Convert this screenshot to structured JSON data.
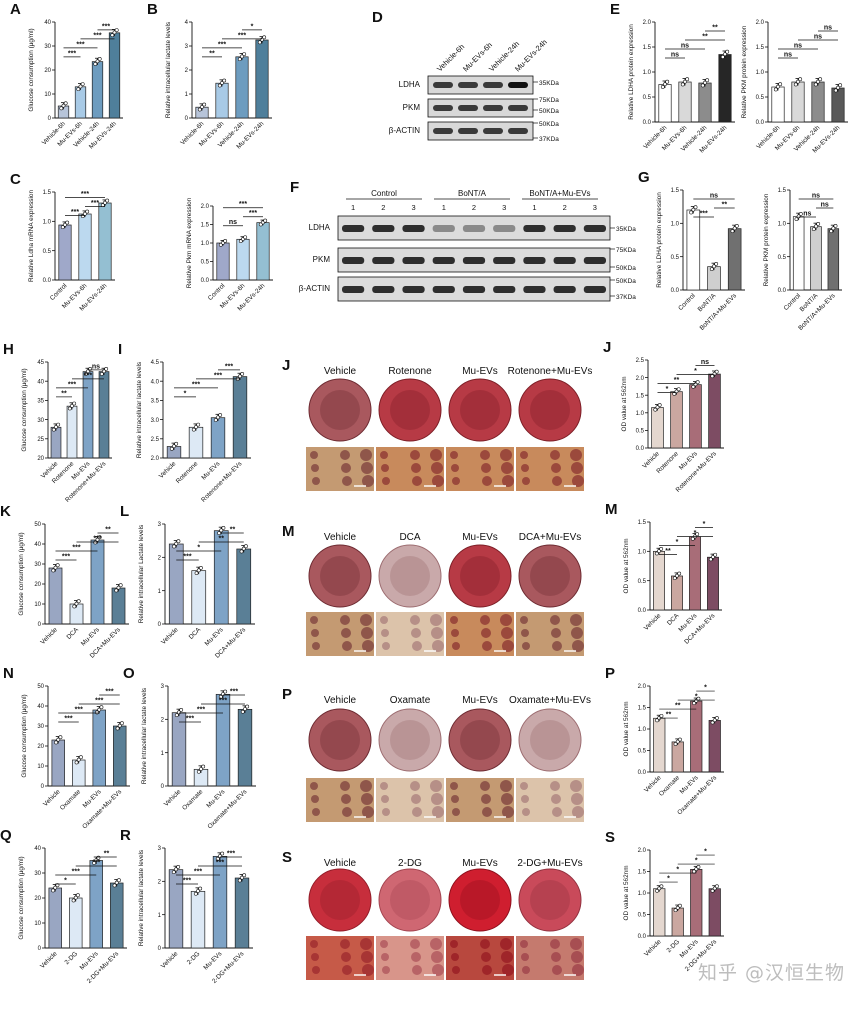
{
  "panels": {
    "A": {
      "label": "A",
      "ylabel": "Glucose consumption (μg/ml)",
      "ticks": [
        "0",
        "10",
        "20",
        "30",
        "40"
      ],
      "cats": [
        "Vehicle-6h",
        "Mu-EVs-6h",
        "Vehicle-24h",
        "Mu-EVs-24h"
      ],
      "sig": [
        "***",
        "***",
        "***",
        "***"
      ]
    },
    "B": {
      "label": "B",
      "ylabel": "Relative intracellular lactate levels",
      "ticks": [
        "0",
        "1",
        "2",
        "3",
        "4"
      ],
      "cats": [
        "Vehicle-6h",
        "Mu-EVs-6h",
        "Vehicle-24h",
        "Mu-EVs-24h"
      ],
      "sig": [
        "**",
        "***",
        "***",
        "*"
      ]
    },
    "C1": {
      "label": "C",
      "ylabel": "Relative Ldha mRNA expression",
      "ticks": [
        "0.0",
        "0.5",
        "1.0",
        "1.5"
      ],
      "cats": [
        "Control",
        "Mu-EVs-6h",
        "Mu-EVs-24h"
      ],
      "sig": [
        "***",
        "***",
        "***"
      ]
    },
    "C2": {
      "ylabel": "Relative Pkm mRNA expression",
      "ticks": [
        "0.0",
        "0.5",
        "1.0",
        "1.5",
        "2.0"
      ],
      "cats": [
        "Control",
        "Mu-EVs-6h",
        "Mu-EVs-24h"
      ],
      "sig": [
        "ns",
        "***",
        "***"
      ]
    },
    "D": {
      "label": "D",
      "lanes": [
        "Vehicle-6h",
        "Mu-EVs-6h",
        "Vehicle-24h",
        "Mu-EVs-24h"
      ],
      "rows": [
        "LDHA",
        "PKM",
        "β-ACTIN"
      ],
      "kda": [
        "35KDa",
        "75KDa",
        "50KDa",
        "50KDa",
        "37KDa"
      ]
    },
    "E1": {
      "label": "E",
      "ylabel": "Relative LDHA protein expression",
      "ticks": [
        "0.0",
        "0.5",
        "1.0",
        "1.5",
        "2.0"
      ],
      "cats": [
        "Vehicle-6h",
        "Mu-EVs-6h",
        "Vehicle-24h",
        "Mu-EVs-24h"
      ],
      "sig": [
        "ns",
        "ns",
        "**",
        "**"
      ]
    },
    "E2": {
      "ylabel": "Relative PKM protein expression",
      "ticks": [
        "0.0",
        "0.5",
        "1.0",
        "1.5",
        "2.0"
      ],
      "cats": [
        "Vehicle-6h",
        "Mu-EVs-6h",
        "Vehicle-24h",
        "Mu-EVs-24h"
      ],
      "sig": [
        "ns",
        "ns",
        "ns",
        "ns"
      ]
    },
    "F": {
      "label": "F",
      "groups": [
        "Control",
        "BoNT/A",
        "BoNT/A+Mu-EVs"
      ],
      "lanes": [
        "1",
        "2",
        "3",
        "1",
        "2",
        "3",
        "1",
        "2",
        "3"
      ],
      "rows": [
        "LDHA",
        "PKM",
        "β-ACTIN"
      ],
      "kda": [
        "35KDa",
        "75KDa",
        "50KDa",
        "50KDa",
        "37KDa"
      ]
    },
    "G1": {
      "label": "G",
      "ylabel": "Relative LDHA protein expression",
      "ticks": [
        "0.0",
        "0.5",
        "1.0",
        "1.5"
      ],
      "cats": [
        "Control",
        "BoNT/A",
        "BoNT/A+Mu-EVs"
      ],
      "sig": [
        "***",
        "**",
        "ns"
      ]
    },
    "G2": {
      "ylabel": "Relative PKM protein expression",
      "ticks": [
        "0.0",
        "0.5",
        "1.0",
        "1.5"
      ],
      "cats": [
        "Control",
        "BoNT/A",
        "BoNT/A+Mu-EVs"
      ],
      "sig": [
        "ns",
        "ns",
        "ns"
      ]
    },
    "H": {
      "label": "H",
      "ylabel": "Glucose consumption (μg/ml)",
      "ticks": [
        "20",
        "25",
        "30",
        "35",
        "40",
        "45"
      ],
      "cats": [
        "Vehicle",
        "Rotenone",
        "Mu-EVs",
        "Rotenone+Mu-EVs"
      ],
      "sig": [
        "**",
        "***",
        "***",
        "ns"
      ]
    },
    "I": {
      "label": "I",
      "ylabel": "Relative intracellular lactate levels",
      "ticks": [
        "2.0",
        "2.5",
        "3.0",
        "3.5",
        "4.0",
        "4.5"
      ],
      "cats": [
        "Vehicle",
        "Rotenone",
        "Mu-EVs",
        "Rotenone+Mu-EVs"
      ],
      "sig": [
        "*",
        "***",
        "***",
        "***"
      ]
    },
    "J": {
      "label": "J",
      "titles": [
        "Vehicle",
        "Rotenone",
        "Mu-EVs",
        "Rotenone+Mu-EVs"
      ],
      "ylabel": "OD value at 562nm",
      "ticks": [
        "0.0",
        "0.5",
        "1.0",
        "1.5",
        "2.0",
        "2.5"
      ],
      "cats": [
        "Vehicle",
        "Rotenone",
        "Mu-EVs",
        "Rotenone+Mu-EVs"
      ],
      "sig": [
        "*",
        "**",
        "*",
        "ns"
      ]
    },
    "K": {
      "label": "K",
      "ylabel": "Glucose consumption (μg/ml)",
      "ticks": [
        "0",
        "10",
        "20",
        "30",
        "40",
        "50"
      ],
      "cats": [
        "Vehicle",
        "DCA",
        "Mu-EVs",
        "DCA+Mu-EVs"
      ],
      "sig": [
        "***",
        "***",
        "***",
        "**"
      ]
    },
    "L": {
      "label": "L",
      "ylabel": "Relative intracellular Lactate levels",
      "ticks": [
        "0",
        "1",
        "2",
        "3"
      ],
      "cats": [
        "Vehicle",
        "DCA",
        "Mu-EVs",
        "DCA+Mu-EVs"
      ],
      "sig": [
        "***",
        "*",
        "**",
        "**"
      ]
    },
    "M": {
      "label": "M",
      "titles": [
        "Vehicle",
        "DCA",
        "Mu-EVs",
        "DCA+Mu-EVs"
      ],
      "ylabel": "OD value at 562nm",
      "ticks": [
        "0.0",
        "0.5",
        "1.0",
        "1.5"
      ],
      "cats": [
        "Vehicle",
        "DCA",
        "Mu-EVs",
        "DCA+Mu-EVs"
      ],
      "sig": [
        "**",
        "*",
        "*",
        "*"
      ]
    },
    "N": {
      "label": "N",
      "ylabel": "Glucose consumption (μg/ml)",
      "ticks": [
        "0",
        "10",
        "20",
        "30",
        "40",
        "50"
      ],
      "cats": [
        "Vehicle",
        "Oxamate",
        "Mu-EVs",
        "Oxamate+Mu-EVs"
      ],
      "sig": [
        "***",
        "***",
        "***",
        "***"
      ]
    },
    "O": {
      "label": "O",
      "ylabel": "Relative intracellular lactate levels",
      "ticks": [
        "0",
        "1",
        "2",
        "3"
      ],
      "cats": [
        "Vehicle",
        "Oxamate",
        "Mu-EVs",
        "Oxamate+Mu-EVs"
      ],
      "sig": [
        "***",
        "***",
        "***",
        "***"
      ]
    },
    "P": {
      "label": "P",
      "titles": [
        "Vehicle",
        "Oxamate",
        "Mu-EVs",
        "Oxamate+Mu-EVs"
      ],
      "ylabel": "OD value at 562nm",
      "ticks": [
        "0.0",
        "0.5",
        "1.0",
        "1.5",
        "2.0"
      ],
      "cats": [
        "Vehicle",
        "Oxamate",
        "Mu-EVs",
        "Oxamate+Mu-EVs"
      ],
      "sig": [
        "**",
        "**",
        "*",
        "*"
      ]
    },
    "Q": {
      "label": "Q",
      "ylabel": "Glucose consumption (μg/ml)",
      "ticks": [
        "0",
        "10",
        "20",
        "30",
        "40"
      ],
      "cats": [
        "Vehicle",
        "2-DG",
        "Mu-EVs",
        "2-DG+Mu-EVs"
      ],
      "sig": [
        "*",
        "***",
        "***",
        "**"
      ]
    },
    "R": {
      "label": "R",
      "ylabel": "Relative intracellular lactate levels",
      "ticks": [
        "0",
        "1",
        "2",
        "3"
      ],
      "cats": [
        "Vehicle",
        "2-DG",
        "Mu-EVs",
        "2-DG+Mu-EVs"
      ],
      "sig": [
        "***",
        "***",
        "***",
        "***"
      ]
    },
    "S": {
      "label": "S",
      "titles": [
        "Vehicle",
        "2-DG",
        "Mu-EVs",
        "2-DG+Mu-EVs"
      ],
      "ylabel": "OD value at 562nm",
      "ticks": [
        "0.0",
        "0.5",
        "1.0",
        "1.5",
        "2.0"
      ],
      "cats": [
        "Vehicle",
        "2-DG",
        "Mu-EVs",
        "2-DG+Mu-EVs"
      ],
      "sig": [
        "*",
        "*",
        "*",
        "*"
      ]
    }
  },
  "watermark": "知乎 @汉恒生物",
  "chart_data": [
    {
      "id": "A",
      "type": "bar",
      "categories": [
        "Vehicle-6h",
        "Mu-EVs-6h",
        "Vehicle-24h",
        "Mu-EVs-24h"
      ],
      "values": [
        5,
        13,
        23.5,
        35.5
      ],
      "ylabel": "Glucose consumption (μg/ml)",
      "ylim": [
        0,
        40
      ],
      "colors": [
        "#b7c4d9",
        "#a8cae6",
        "#6d9cbf",
        "#4f7f9b"
      ]
    },
    {
      "id": "B",
      "type": "bar",
      "categories": [
        "Vehicle-6h",
        "Mu-EVs-6h",
        "Vehicle-24h",
        "Mu-EVs-24h"
      ],
      "values": [
        0.45,
        1.45,
        2.55,
        3.25
      ],
      "ylabel": "Relative intracellular lactate levels",
      "ylim": [
        0,
        4
      ],
      "colors": [
        "#b7c4d9",
        "#a8cae6",
        "#6d9cbf",
        "#4f7f9b"
      ]
    },
    {
      "id": "C1",
      "type": "bar",
      "categories": [
        "Control",
        "Mu-EVs-6h",
        "Mu-EVs-24h"
      ],
      "values": [
        1.0,
        1.2,
        1.4
      ],
      "ylabel": "Relative Ldha mRNA expression",
      "ylim": [
        0,
        1.6
      ],
      "colors": [
        "#9fa8c9",
        "#bcd9ef",
        "#94bfd2"
      ]
    },
    {
      "id": "C2",
      "type": "bar",
      "categories": [
        "Control",
        "Mu-EVs-6h",
        "Mu-EVs-24h"
      ],
      "values": [
        1.0,
        1.1,
        1.55
      ],
      "ylabel": "Relative Pkm mRNA expression",
      "ylim": [
        0,
        2.0
      ],
      "colors": [
        "#9fa8c9",
        "#bcd9ef",
        "#94bfd2"
      ]
    },
    {
      "id": "E1",
      "type": "bar",
      "categories": [
        "Vehicle-6h",
        "Mu-EVs-6h",
        "Vehicle-24h",
        "Mu-EVs-24h"
      ],
      "values": [
        0.75,
        0.8,
        0.78,
        1.35
      ],
      "ylabel": "Relative LDHA protein expression",
      "ylim": [
        0,
        2.0
      ],
      "colors": [
        "#ffffff",
        "#d9d9d9",
        "#8c8c8c",
        "#262626"
      ]
    },
    {
      "id": "E2",
      "type": "bar",
      "categories": [
        "Vehicle-6h",
        "Mu-EVs-6h",
        "Vehicle-24h",
        "Mu-EVs-24h"
      ],
      "values": [
        0.7,
        0.8,
        0.8,
        0.68
      ],
      "ylabel": "Relative PKM protein expression",
      "ylim": [
        0,
        2.0
      ],
      "colors": [
        "#ffffff",
        "#d9d9d9",
        "#8c8c8c",
        "#595959"
      ]
    },
    {
      "id": "G1",
      "type": "bar",
      "categories": [
        "Control",
        "BoNT/A",
        "BoNT/A+Mu-EVs"
      ],
      "values": [
        1.2,
        0.35,
        0.92
      ],
      "ylabel": "Relative LDHA protein expression",
      "ylim": [
        0,
        1.5
      ],
      "colors": [
        "#ffffff",
        "#cfcfcf",
        "#707070"
      ]
    },
    {
      "id": "G2",
      "type": "bar",
      "categories": [
        "Control",
        "BoNT/A",
        "BoNT/A+Mu-EVs"
      ],
      "values": [
        1.1,
        0.95,
        0.92
      ],
      "ylabel": "Relative PKM protein expression",
      "ylim": [
        0,
        1.5
      ],
      "colors": [
        "#ffffff",
        "#cfcfcf",
        "#707070"
      ]
    },
    {
      "id": "H",
      "type": "bar",
      "categories": [
        "Vehicle",
        "Rotenone",
        "Mu-EVs",
        "Rotenone+Mu-EVs"
      ],
      "values": [
        28,
        33.5,
        42.5,
        42.5
      ],
      "ylabel": "Glucose consumption (μg/ml)",
      "ylim": [
        20,
        45
      ],
      "colors": [
        "#99a6c2",
        "#dde9f5",
        "#7ea3c6",
        "#5a7f96"
      ]
    },
    {
      "id": "I",
      "type": "bar",
      "categories": [
        "Vehicle",
        "Rotenone",
        "Mu-EVs",
        "Rotenone+Mu-EVs"
      ],
      "values": [
        2.3,
        2.8,
        3.05,
        4.12
      ],
      "ylabel": "Relative intracellular lactate levels",
      "ylim": [
        2.0,
        4.5
      ],
      "colors": [
        "#99a6c2",
        "#dde9f5",
        "#7ea3c6",
        "#5a7f96"
      ]
    },
    {
      "id": "J",
      "type": "bar",
      "categories": [
        "Vehicle",
        "Rotenone",
        "Mu-EVs",
        "Rotenone+Mu-EVs"
      ],
      "values": [
        1.15,
        1.6,
        1.8,
        2.1
      ],
      "ylabel": "OD value at 562nm",
      "ylim": [
        0,
        2.5
      ],
      "colors": [
        "#e4d7cf",
        "#caa7a0",
        "#a86d78",
        "#7d4c63"
      ]
    },
    {
      "id": "K",
      "type": "bar",
      "categories": [
        "Vehicle",
        "DCA",
        "Mu-EVs",
        "DCA+Mu-EVs"
      ],
      "values": [
        28,
        10,
        42,
        18
      ],
      "ylabel": "Glucose consumption (μg/ml)",
      "ylim": [
        0,
        50
      ],
      "colors": [
        "#99a6c2",
        "#dde9f5",
        "#7ea3c6",
        "#5a7f96"
      ]
    },
    {
      "id": "L",
      "type": "bar",
      "categories": [
        "Vehicle",
        "DCA",
        "Mu-EVs",
        "DCA+Mu-EVs"
      ],
      "values": [
        2.4,
        1.6,
        2.8,
        2.25
      ],
      "ylabel": "Relative intracellular Lactate levels",
      "ylim": [
        0,
        3
      ],
      "colors": [
        "#99a6c2",
        "#dde9f5",
        "#7ea3c6",
        "#5a7f96"
      ]
    },
    {
      "id": "M",
      "type": "bar",
      "categories": [
        "Vehicle",
        "DCA",
        "Mu-EVs",
        "DCA+Mu-EVs"
      ],
      "values": [
        1.0,
        0.58,
        1.25,
        0.9
      ],
      "ylabel": "OD value at 562nm",
      "ylim": [
        0,
        1.5
      ],
      "colors": [
        "#e4d7cf",
        "#caa7a0",
        "#a86d78",
        "#7d4c63"
      ]
    },
    {
      "id": "N",
      "type": "bar",
      "categories": [
        "Vehicle",
        "Oxamate",
        "Mu-EVs",
        "Oxamate+Mu-EVs"
      ],
      "values": [
        23,
        13,
        38,
        30
      ],
      "ylabel": "Glucose consumption (μg/ml)",
      "ylim": [
        0,
        50
      ],
      "colors": [
        "#99a6c2",
        "#dde9f5",
        "#7ea3c6",
        "#5a7f96"
      ]
    },
    {
      "id": "O",
      "type": "bar",
      "categories": [
        "Vehicle",
        "Oxamate",
        "Mu-EVs",
        "Oxamate+Mu-EVs"
      ],
      "values": [
        2.2,
        0.5,
        2.75,
        2.3
      ],
      "ylabel": "Relative intracellular lactate levels",
      "ylim": [
        0,
        3
      ],
      "colors": [
        "#99a6c2",
        "#dde9f5",
        "#7ea3c6",
        "#5a7f96"
      ]
    },
    {
      "id": "P",
      "type": "bar",
      "categories": [
        "Vehicle",
        "Oxamate",
        "Mu-EVs",
        "Oxamate+Mu-EVs"
      ],
      "values": [
        1.25,
        0.7,
        1.65,
        1.2
      ],
      "ylabel": "OD value at 562nm",
      "ylim": [
        0,
        2.0
      ],
      "colors": [
        "#e4d7cf",
        "#caa7a0",
        "#a86d78",
        "#7d4c63"
      ]
    },
    {
      "id": "Q",
      "type": "bar",
      "categories": [
        "Vehicle",
        "2-DG",
        "Mu-EVs",
        "2-DG+Mu-EVs"
      ],
      "values": [
        24,
        20,
        35,
        26
      ],
      "ylabel": "Glucose consumption (μg/ml)",
      "ylim": [
        0,
        40
      ],
      "colors": [
        "#99a6c2",
        "#dde9f5",
        "#7ea3c6",
        "#5a7f96"
      ]
    },
    {
      "id": "R",
      "type": "bar",
      "categories": [
        "Vehicle",
        "2-DG",
        "Mu-EVs",
        "2-DG+Mu-EVs"
      ],
      "values": [
        2.35,
        1.7,
        2.75,
        2.1
      ],
      "ylabel": "Relative intracellular lactate levels",
      "ylim": [
        0,
        3
      ],
      "colors": [
        "#99a6c2",
        "#dde9f5",
        "#7ea3c6",
        "#5a7f96"
      ]
    },
    {
      "id": "S",
      "type": "bar",
      "categories": [
        "Vehicle",
        "2-DG",
        "Mu-EVs",
        "2-DG+Mu-EVs"
      ],
      "values": [
        1.1,
        0.65,
        1.55,
        1.1
      ],
      "ylabel": "OD value at 562nm",
      "ylim": [
        0,
        2.0
      ],
      "colors": [
        "#e4d7cf",
        "#caa7a0",
        "#a86d78",
        "#7d4c63"
      ]
    }
  ]
}
